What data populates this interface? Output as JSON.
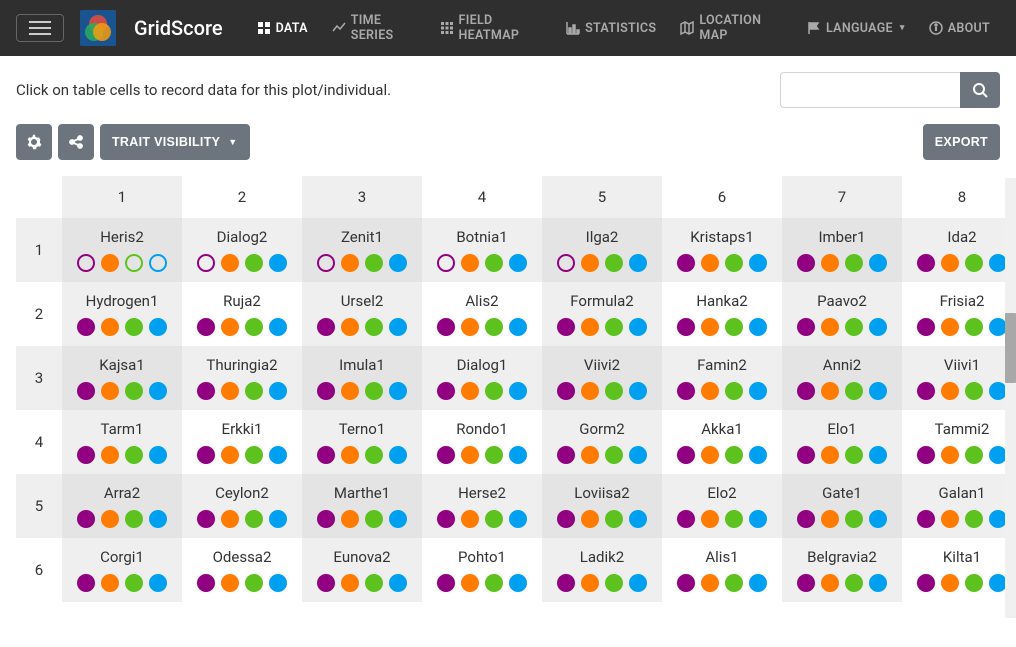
{
  "navbar": {
    "brand": "GridScore",
    "items": [
      {
        "label": "DATA",
        "active": true,
        "icon": "grid"
      },
      {
        "label": "TIME SERIES",
        "active": false,
        "icon": "chart"
      },
      {
        "label": "FIELD HEATMAP",
        "active": false,
        "icon": "heatmap"
      },
      {
        "label": "STATISTICS",
        "active": false,
        "icon": "stats"
      },
      {
        "label": "LOCATION MAP",
        "active": false,
        "icon": "map"
      }
    ],
    "right": [
      {
        "label": "LANGUAGE",
        "icon": "flag",
        "dropdown": true
      },
      {
        "label": "ABOUT",
        "icon": "info",
        "dropdown": false
      }
    ]
  },
  "subheader": {
    "instruction": "Click on table cells to record data for this plot/individual.",
    "search_placeholder": ""
  },
  "toolbar": {
    "trait_visibility": "TRAIT VISIBILITY",
    "export": "EXPORT"
  },
  "trait_colors": [
    "#910080",
    "#ff7c00",
    "#5ec21e",
    "#00a0f1"
  ],
  "columns": [
    "1",
    "2",
    "3",
    "4",
    "5",
    "6",
    "7",
    "8"
  ],
  "shaded_columns": [
    1,
    3,
    5,
    7
  ],
  "shaded_rows": [
    1,
    3,
    5
  ],
  "rows": [
    {
      "label": "1",
      "cells": [
        {
          "name": "Heris2",
          "fills": [
            false,
            true,
            false,
            false
          ]
        },
        {
          "name": "Dialog2",
          "fills": [
            false,
            true,
            true,
            true
          ]
        },
        {
          "name": "Zenit1",
          "fills": [
            false,
            true,
            true,
            true
          ]
        },
        {
          "name": "Botnia1",
          "fills": [
            false,
            true,
            true,
            true
          ]
        },
        {
          "name": "Ilga2",
          "fills": [
            false,
            true,
            true,
            true
          ]
        },
        {
          "name": "Kristaps1",
          "fills": [
            true,
            true,
            true,
            true
          ]
        },
        {
          "name": "Imber1",
          "fills": [
            true,
            true,
            true,
            true
          ]
        },
        {
          "name": "Ida2",
          "fills": [
            true,
            true,
            true,
            true
          ]
        }
      ]
    },
    {
      "label": "2",
      "cells": [
        {
          "name": "Hydrogen1",
          "fills": [
            true,
            true,
            true,
            true
          ]
        },
        {
          "name": "Ruja2",
          "fills": [
            true,
            true,
            true,
            true
          ]
        },
        {
          "name": "Ursel2",
          "fills": [
            true,
            true,
            true,
            true
          ]
        },
        {
          "name": "Alis2",
          "fills": [
            true,
            true,
            true,
            true
          ]
        },
        {
          "name": "Formula2",
          "fills": [
            true,
            true,
            true,
            true
          ]
        },
        {
          "name": "Hanka2",
          "fills": [
            true,
            true,
            true,
            true
          ]
        },
        {
          "name": "Paavo2",
          "fills": [
            true,
            true,
            true,
            true
          ]
        },
        {
          "name": "Frisia2",
          "fills": [
            true,
            true,
            true,
            true
          ]
        }
      ]
    },
    {
      "label": "3",
      "cells": [
        {
          "name": "Kajsa1",
          "fills": [
            true,
            true,
            true,
            true
          ]
        },
        {
          "name": "Thuringia2",
          "fills": [
            true,
            true,
            true,
            true
          ]
        },
        {
          "name": "Imula1",
          "fills": [
            true,
            true,
            true,
            true
          ]
        },
        {
          "name": "Dialog1",
          "fills": [
            true,
            true,
            true,
            true
          ]
        },
        {
          "name": "Viivi2",
          "fills": [
            true,
            true,
            true,
            true
          ]
        },
        {
          "name": "Famin2",
          "fills": [
            true,
            true,
            true,
            true
          ]
        },
        {
          "name": "Anni2",
          "fills": [
            true,
            true,
            true,
            true
          ]
        },
        {
          "name": "Viivi1",
          "fills": [
            true,
            true,
            true,
            true
          ]
        }
      ]
    },
    {
      "label": "4",
      "cells": [
        {
          "name": "Tarm1",
          "fills": [
            true,
            true,
            true,
            true
          ]
        },
        {
          "name": "Erkki1",
          "fills": [
            true,
            true,
            true,
            true
          ]
        },
        {
          "name": "Terno1",
          "fills": [
            true,
            true,
            true,
            true
          ]
        },
        {
          "name": "Rondo1",
          "fills": [
            true,
            true,
            true,
            true
          ]
        },
        {
          "name": "Gorm2",
          "fills": [
            true,
            true,
            true,
            true
          ]
        },
        {
          "name": "Akka1",
          "fills": [
            true,
            true,
            true,
            true
          ]
        },
        {
          "name": "Elo1",
          "fills": [
            true,
            true,
            true,
            true
          ]
        },
        {
          "name": "Tammi2",
          "fills": [
            true,
            true,
            true,
            true
          ]
        }
      ]
    },
    {
      "label": "5",
      "cells": [
        {
          "name": "Arra2",
          "fills": [
            true,
            true,
            true,
            true
          ]
        },
        {
          "name": "Ceylon2",
          "fills": [
            true,
            true,
            true,
            true
          ]
        },
        {
          "name": "Marthe1",
          "fills": [
            true,
            true,
            true,
            true
          ]
        },
        {
          "name": "Herse2",
          "fills": [
            true,
            true,
            true,
            true
          ]
        },
        {
          "name": "Loviisa2",
          "fills": [
            true,
            true,
            true,
            true
          ]
        },
        {
          "name": "Elo2",
          "fills": [
            true,
            true,
            true,
            true
          ]
        },
        {
          "name": "Gate1",
          "fills": [
            true,
            true,
            true,
            true
          ]
        },
        {
          "name": "Galan1",
          "fills": [
            true,
            true,
            true,
            true
          ]
        }
      ]
    },
    {
      "label": "6",
      "cells": [
        {
          "name": "Corgi1",
          "fills": [
            true,
            true,
            true,
            true
          ]
        },
        {
          "name": "Odessa2",
          "fills": [
            true,
            true,
            true,
            true
          ]
        },
        {
          "name": "Eunova2",
          "fills": [
            true,
            true,
            true,
            true
          ]
        },
        {
          "name": "Pohto1",
          "fills": [
            true,
            true,
            true,
            true
          ]
        },
        {
          "name": "Ladik2",
          "fills": [
            true,
            true,
            true,
            true
          ]
        },
        {
          "name": "Alis1",
          "fills": [
            true,
            true,
            true,
            true
          ]
        },
        {
          "name": "Belgravia2",
          "fills": [
            true,
            true,
            true,
            true
          ]
        },
        {
          "name": "Kilta1",
          "fills": [
            true,
            true,
            true,
            true
          ]
        }
      ]
    }
  ]
}
